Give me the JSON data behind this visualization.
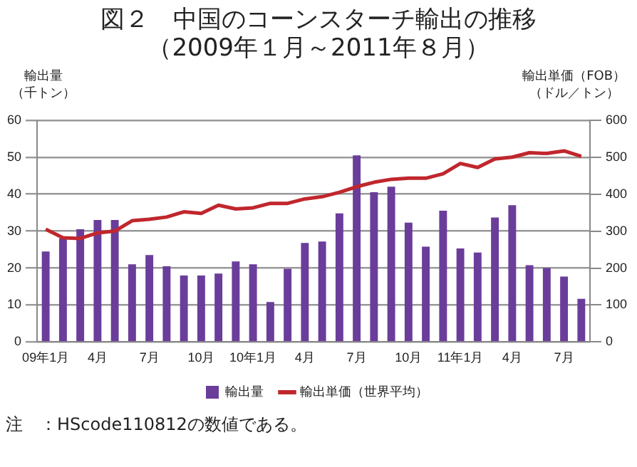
{
  "chart_data": {
    "type": "bar",
    "title": "図２　中国のコーンスターチ輸出の推移（2009年１月～2011年８月）",
    "ylabel": "輸出量（千トン）",
    "y2label": "輸出単価（FOB）（ドル／トン）",
    "categories": [
      "09年1月",
      null,
      null,
      "4月",
      null,
      null,
      "7月",
      null,
      null,
      "10月",
      null,
      null,
      "10年1月",
      null,
      null,
      "4月",
      null,
      null,
      "7月",
      null,
      null,
      "10月",
      null,
      null,
      "11年1月",
      null,
      null,
      "4月",
      null,
      null,
      "7月",
      null
    ],
    "series": [
      {
        "name": "輸出量",
        "color": "#6a3d9a",
        "values": [
          24.5,
          28,
          30.5,
          33,
          33,
          21,
          23.5,
          20.5,
          18,
          18,
          18.5,
          21.8,
          21,
          10.8,
          19.8,
          26.8,
          27.2,
          34.8,
          50.5,
          40.5,
          42,
          32.3,
          25.8,
          35.5,
          25.3,
          24.2,
          33.7,
          37,
          20.8,
          20,
          17.7,
          11.7
        ]
      },
      {
        "name": "輸出単価（世界平均）",
        "type": "line",
        "axis": "y2",
        "color": "#c0272d",
        "values": [
          305,
          282,
          280,
          295,
          300,
          328,
          332,
          338,
          352,
          348,
          370,
          360,
          363,
          375,
          375,
          387,
          393,
          405,
          420,
          432,
          440,
          443,
          443,
          455,
          483,
          472,
          495,
          500,
          512,
          510,
          517,
          502
        ]
      }
    ],
    "ylim": [
      0,
      60
    ],
    "yticks": [
      0,
      10,
      20,
      30,
      40,
      50,
      60
    ],
    "y2lim": [
      0,
      600
    ],
    "y2ticks": [
      0,
      100,
      200,
      300,
      400,
      500,
      600
    ],
    "grid": "y",
    "legend": "bottom",
    "marker": "none",
    "line_style": "solid",
    "annotations": [
      "注　：HScode110812の数値である。"
    ]
  }
}
